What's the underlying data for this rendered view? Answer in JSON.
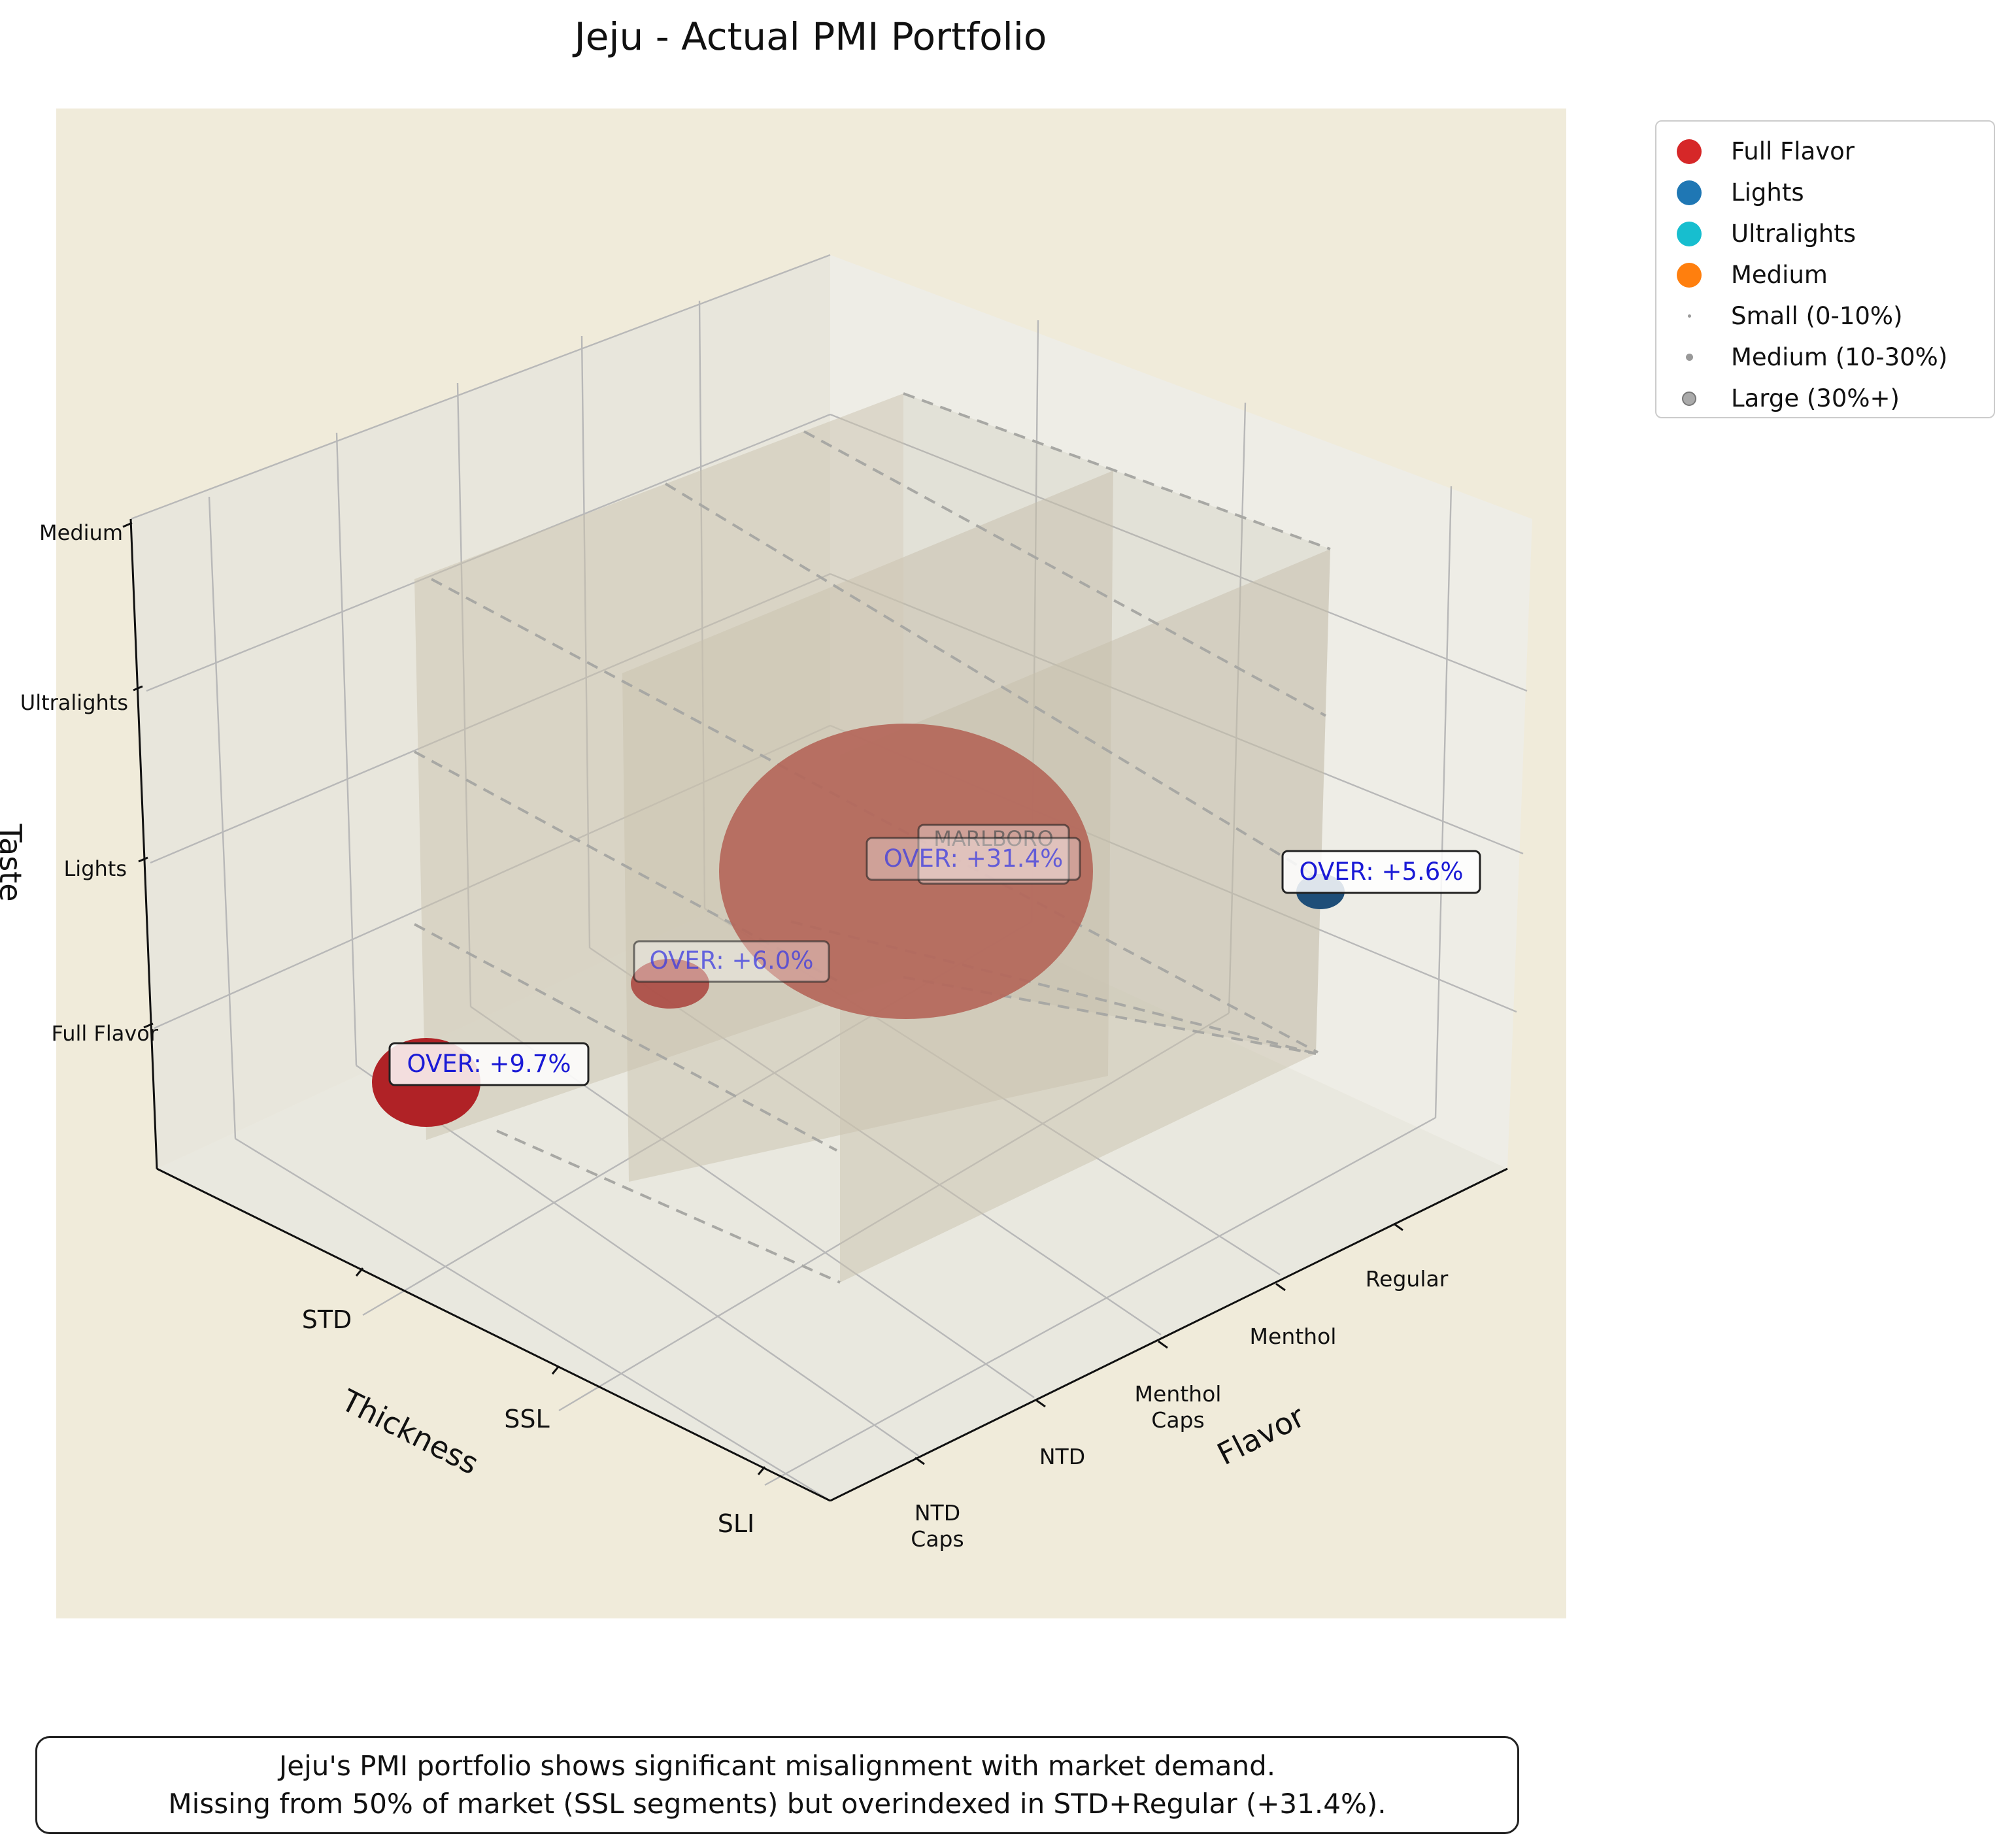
{
  "chart_data": {
    "type": "scatter",
    "title": "Jeju - Actual PMI Portfolio",
    "axes": {
      "x": {
        "label": "Thickness",
        "ticks": [
          "STD",
          "SSL",
          "SLI"
        ]
      },
      "y": {
        "label": "Flavor",
        "ticks": [
          "Regular",
          "Menthol",
          "Menthol\nCaps",
          "NTD",
          "NTD\nCaps"
        ]
      },
      "z": {
        "label": "Taste",
        "ticks": [
          "Full Flavor",
          "Lights",
          "Ultralights",
          "Medium"
        ]
      }
    },
    "legend": {
      "placement": "outside-top-right",
      "taste_entries": [
        {
          "label": "Full Flavor",
          "color": "#d62728"
        },
        {
          "label": "Lights",
          "color": "#1f77b4"
        },
        {
          "label": "Ultralights",
          "color": "#17becf"
        },
        {
          "label": "Medium",
          "color": "#ff7f0e"
        }
      ],
      "size_entries": [
        {
          "label": "Small (0-10%)",
          "size": "small"
        },
        {
          "label": "Medium (10-30%)",
          "size": "medium"
        },
        {
          "label": "Large (30%+)",
          "size": "large"
        }
      ]
    },
    "points": [
      {
        "thickness": "STD",
        "flavor": "Regular",
        "taste": "Full Flavor",
        "annotation": "OVER: +31.4%",
        "brand": "MARLBORO",
        "color": "#b5645a"
      },
      {
        "thickness": "STD",
        "flavor": "NTD Caps",
        "taste": "Full Flavor",
        "annotation": "OVER: +9.7%",
        "color": "#b02226"
      },
      {
        "thickness": "STD",
        "flavor": "NTD",
        "taste": "Full Flavor",
        "annotation": "OVER: +6.0%",
        "color": "#b5645a"
      },
      {
        "thickness": "STD",
        "flavor": "Regular",
        "taste": "Lights",
        "annotation": "OVER: +5.6%",
        "color": "#1f4e78"
      }
    ]
  },
  "caption": {
    "line1": "Jeju's PMI portfolio shows significant misalignment with market demand.",
    "line2": "Missing from 50% of market (SSL segments) but overindexed in STD+Regular (+31.4%)."
  }
}
